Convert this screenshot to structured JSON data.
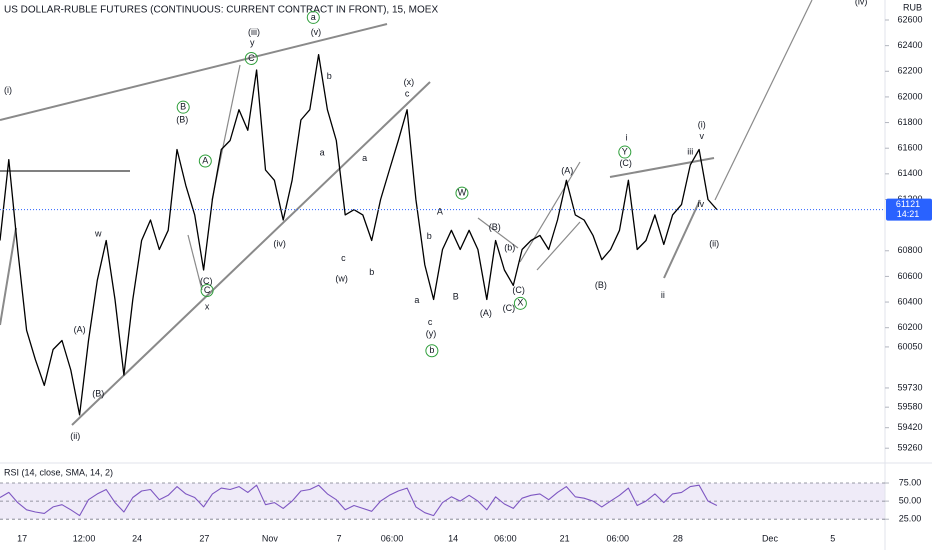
{
  "chart_data": [
    {
      "type": "line",
      "title": "US DOLLAR-RUBLE FUTURES (CONTINUOUS: CURRENT CONTRACT IN FRONT), 15, MOEX",
      "y_label": "RUB",
      "countdown": "14:21",
      "color": "#000000",
      "x": [
        0,
        1,
        2,
        3,
        4,
        5,
        6,
        7,
        8,
        9,
        10,
        11,
        12,
        13,
        14,
        15,
        16,
        17,
        18,
        19,
        20,
        21,
        22,
        23,
        24,
        25,
        26,
        27,
        28,
        29,
        30,
        31,
        32,
        33,
        34,
        35,
        36,
        37,
        38,
        39,
        40,
        41,
        42,
        43,
        44,
        45,
        46,
        47,
        48,
        49,
        50,
        51,
        52,
        53,
        54,
        55,
        56,
        57,
        58,
        59,
        60,
        61,
        62,
        63,
        64,
        65,
        66,
        67,
        68,
        69,
        70,
        71,
        72,
        73,
        74,
        75,
        76,
        77,
        78,
        79,
        80,
        81
      ],
      "values": [
        60880,
        61510,
        60810,
        60180,
        59950,
        59750,
        60030,
        60100,
        59870,
        59520,
        60100,
        60570,
        60880,
        60420,
        59830,
        60420,
        60880,
        61040,
        60810,
        60960,
        61590,
        61310,
        61080,
        60650,
        61200,
        61590,
        61660,
        61900,
        61740,
        62210,
        61430,
        61350,
        61040,
        61350,
        61820,
        61900,
        62330,
        61900,
        61660,
        61080,
        61120,
        61080,
        60880,
        61200,
        61430,
        61660,
        61900,
        61200,
        60690,
        60420,
        60810,
        60960,
        60810,
        60960,
        60810,
        60420,
        60880,
        60650,
        60530,
        60810,
        60880,
        60920,
        60810,
        61040,
        61350,
        61080,
        61040,
        60920,
        60730,
        60810,
        60960,
        61350,
        60810,
        60880,
        61080,
        60850,
        61080,
        61160,
        61470,
        61590,
        61200,
        61121
      ],
      "xlim": [
        0,
        100
      ],
      "xticks": [
        {
          "value": 2.5,
          "label": "17"
        },
        {
          "value": 9.5,
          "label": "12:00"
        },
        {
          "value": 15.5,
          "label": "24"
        },
        {
          "value": 23.1,
          "label": "27"
        },
        {
          "value": 30.5,
          "label": "Nov"
        },
        {
          "value": 38.3,
          "label": "7"
        },
        {
          "value": 44.3,
          "label": "06:00"
        },
        {
          "value": 51.2,
          "label": "14"
        },
        {
          "value": 57.1,
          "label": "06:00"
        },
        {
          "value": 63.8,
          "label": "21"
        },
        {
          "value": 69.8,
          "label": "06:00"
        },
        {
          "value": 76.6,
          "label": "28"
        },
        {
          "value": 87.0,
          "label": "Dec"
        },
        {
          "value": 94.1,
          "label": "5"
        }
      ],
      "ylim": [
        59168,
        62756
      ],
      "yticks": [
        62600,
        62400,
        62200,
        62000,
        61800,
        61600,
        61400,
        61200,
        60800,
        60600,
        60400,
        60200,
        60050,
        59730,
        59580,
        59420,
        59260
      ],
      "annotations": [
        {
          "text": "(i)",
          "x": 0.9,
          "y": 62050,
          "color": "#1848cc"
        },
        {
          "text": "(ii)",
          "x": 8.5,
          "y": 59350,
          "color": "#1848cc"
        },
        {
          "text": "(iii)",
          "x": 28.7,
          "y": 62500,
          "color": "#1848cc"
        },
        {
          "text": "y",
          "x": 28.5,
          "y": 62420,
          "color": "#a0288c"
        },
        {
          "text": "(iv)",
          "x": 31.6,
          "y": 60850,
          "color": "#1848cc"
        },
        {
          "text": "(v)",
          "x": 35.7,
          "y": 62500,
          "color": "#1848cc"
        },
        {
          "text": "a",
          "x": 35.4,
          "y": 62620,
          "color": "#2e9e3a",
          "circled": true
        },
        {
          "text": "b",
          "x": 37.2,
          "y": 62160,
          "color": "#a0288c"
        },
        {
          "text": "a",
          "x": 36.4,
          "y": 61560,
          "color": "#a0288c"
        },
        {
          "text": "c",
          "x": 38.8,
          "y": 60740,
          "color": "#a0288c"
        },
        {
          "text": "(w)",
          "x": 38.6,
          "y": 60580,
          "color": "#1848cc"
        },
        {
          "text": "a",
          "x": 41.2,
          "y": 61520,
          "color": "#a0288c"
        },
        {
          "text": "b",
          "x": 42.0,
          "y": 60630,
          "color": "#a0288c"
        },
        {
          "text": "(x)",
          "x": 46.2,
          "y": 62110,
          "color": "#1848cc"
        },
        {
          "text": "c",
          "x": 46.0,
          "y": 62020,
          "color": "#a0288c"
        },
        {
          "text": "A",
          "x": 49.7,
          "y": 61100,
          "color": "#a0288c"
        },
        {
          "text": "b",
          "x": 48.5,
          "y": 60910,
          "color": "#a0288c"
        },
        {
          "text": "a",
          "x": 47.1,
          "y": 60410,
          "color": "#a0288c"
        },
        {
          "text": "B",
          "x": 51.5,
          "y": 60440,
          "color": "#a0288c"
        },
        {
          "text": "c",
          "x": 48.6,
          "y": 60240,
          "color": "#a0288c"
        },
        {
          "text": "(y)",
          "x": 48.7,
          "y": 60150,
          "color": "#1848cc"
        },
        {
          "text": "b",
          "x": 48.8,
          "y": 60020,
          "color": "#2e9e3a",
          "circled": true
        },
        {
          "text": "W",
          "x": 52.2,
          "y": 61250,
          "color": "#2e9e3a",
          "circled": true
        },
        {
          "text": "(B)",
          "x": 55.9,
          "y": 60980,
          "color": "#1848cc"
        },
        {
          "text": "(A)",
          "x": 54.9,
          "y": 60310,
          "color": "#1848cc"
        },
        {
          "text": "(C)",
          "x": 57.5,
          "y": 60350,
          "color": "#1848cc"
        },
        {
          "text": "(C)",
          "x": 58.6,
          "y": 60490,
          "color": "#1848cc"
        },
        {
          "text": "X",
          "x": 58.8,
          "y": 60390,
          "color": "#2e9e3a",
          "circled": true
        },
        {
          "text": "(b)",
          "x": 57.6,
          "y": 60820,
          "color": "#1848cc"
        },
        {
          "text": "(A)",
          "x": 64.1,
          "y": 61420,
          "color": "#1848cc"
        },
        {
          "text": "(B)",
          "x": 67.9,
          "y": 60530,
          "color": "#1848cc"
        },
        {
          "text": "i",
          "x": 70.8,
          "y": 61680,
          "color": "#a0288c"
        },
        {
          "text": "Y",
          "x": 70.6,
          "y": 61570,
          "color": "#2e9e3a",
          "circled": true
        },
        {
          "text": "(C)",
          "x": 70.7,
          "y": 61480,
          "color": "#1848cc"
        },
        {
          "text": "ii",
          "x": 74.9,
          "y": 60450,
          "color": "#a0288c"
        },
        {
          "text": "(i)",
          "x": 79.3,
          "y": 61780,
          "color": "#1848cc"
        },
        {
          "text": "v",
          "x": 79.3,
          "y": 61690,
          "color": "#a0288c"
        },
        {
          "text": "iii",
          "x": 78.0,
          "y": 61570,
          "color": "#a0288c"
        },
        {
          "text": "iv",
          "x": 79.2,
          "y": 61160,
          "color": "#a0288c"
        },
        {
          "text": "(ii)",
          "x": 80.7,
          "y": 60850,
          "color": "#1848cc"
        },
        {
          "text": "(iv)",
          "x": 97.3,
          "y": 62740,
          "color": "#1848cc"
        },
        {
          "text": "w",
          "x": 11.1,
          "y": 60930,
          "color": "#a0288c"
        },
        {
          "text": "(A)",
          "x": 9.0,
          "y": 60180,
          "color": "#1848cc"
        },
        {
          "text": "(B)",
          "x": 11.1,
          "y": 59680,
          "color": "#1848cc"
        },
        {
          "text": "x",
          "x": 23.4,
          "y": 60360,
          "color": "#a0288c"
        },
        {
          "text": "(B)",
          "x": 20.6,
          "y": 61820,
          "color": "#1848cc"
        },
        {
          "text": "B",
          "x": 20.7,
          "y": 61920,
          "color": "#2e9e3a",
          "circled": true
        },
        {
          "text": "A",
          "x": 23.2,
          "y": 61500,
          "color": "#2e9e3a",
          "circled": true
        },
        {
          "text": "C",
          "x": 23.4,
          "y": 60490,
          "color": "#2e9e3a",
          "circled": true
        },
        {
          "text": "C",
          "x": 28.4,
          "y": 62300,
          "color": "#2e9e3a",
          "circled": true
        },
        {
          "text": "(C)",
          "x": 23.3,
          "y": 60560,
          "color": "#1848cc"
        }
      ]
    },
    {
      "type": "line",
      "title": "RSI (14, close, SMA, 14, 2)",
      "color": "#7e57c2",
      "x": [
        0,
        1,
        2,
        3,
        4,
        5,
        6,
        7,
        8,
        9,
        10,
        11,
        12,
        13,
        14,
        15,
        16,
        17,
        18,
        19,
        20,
        21,
        22,
        23,
        24,
        25,
        26,
        27,
        28,
        29,
        30,
        31,
        32,
        33,
        34,
        35,
        36,
        37,
        38,
        39,
        40,
        41,
        42,
        43,
        44,
        45,
        46,
        47,
        48,
        49,
        50,
        51,
        52,
        53,
        54,
        55,
        56,
        57,
        58,
        59,
        60,
        61,
        62,
        63,
        64,
        65,
        66,
        67,
        68,
        69,
        70,
        71,
        72,
        73,
        74,
        75,
        76,
        77,
        78,
        79,
        80,
        81
      ],
      "values": [
        55,
        62,
        48,
        38,
        35,
        33,
        42,
        45,
        38,
        30,
        52,
        60,
        66,
        48,
        35,
        55,
        64,
        66,
        52,
        58,
        70,
        60,
        55,
        42,
        60,
        68,
        66,
        70,
        62,
        72,
        45,
        48,
        40,
        50,
        64,
        66,
        72,
        60,
        52,
        38,
        44,
        40,
        36,
        50,
        58,
        64,
        68,
        42,
        34,
        30,
        48,
        56,
        50,
        58,
        50,
        38,
        56,
        46,
        40,
        54,
        58,
        60,
        52,
        62,
        70,
        56,
        54,
        50,
        42,
        50,
        58,
        68,
        44,
        50,
        60,
        48,
        60,
        62,
        70,
        72,
        50,
        44
      ],
      "xlim": [
        0,
        100
      ],
      "ylim": [
        17,
        93
      ],
      "yticks": [
        {
          "value": 75,
          "label": "75.00"
        },
        {
          "value": 50,
          "label": "50.00"
        },
        {
          "value": 25,
          "label": "25.00"
        }
      ]
    }
  ]
}
